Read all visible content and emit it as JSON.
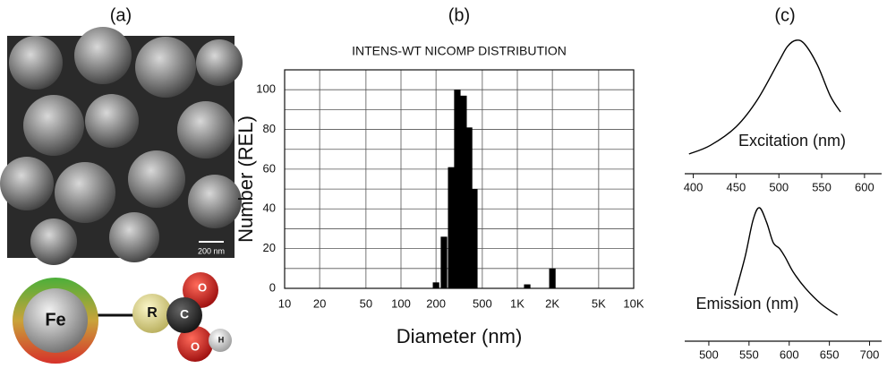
{
  "panel_labels": [
    "(a)",
    "(b)",
    "(c)"
  ],
  "scale_bar": "200 nm",
  "molecule": {
    "core": "Fe",
    "atoms": [
      "R",
      "C",
      "O",
      "O",
      "H"
    ]
  },
  "chart_data": [
    {
      "type": "bar",
      "title": "INTENS-WT NICOMP DISTRIBUTION",
      "x_label": "Diameter (nm)",
      "y_label": "Number (REL)",
      "x": [
        200,
        234,
        270,
        305,
        345,
        385,
        427,
        1216,
        2000
      ],
      "values": [
        3,
        26,
        61,
        100,
        97,
        81,
        50,
        2,
        10
      ],
      "color": "#000000",
      "x_scale": "log",
      "xlim": [
        10,
        10000
      ],
      "xticks": [
        10,
        20,
        50,
        100,
        200,
        500,
        {
          "value": 1000,
          "label": "1K"
        },
        {
          "value": 2000,
          "label": "2K"
        },
        {
          "value": 5000,
          "label": "5K"
        },
        {
          "value": 10000,
          "label": "10K"
        }
      ],
      "ylim": [
        0,
        110
      ],
      "yticks": [
        0,
        20,
        40,
        60,
        80,
        100
      ],
      "y_minor_ticks": [
        10,
        30,
        50,
        70,
        90,
        110
      ],
      "grid": true
    },
    {
      "type": "line",
      "x_label": "Excitation (nm)",
      "x": [
        395,
        420,
        450,
        475,
        500,
        510,
        520,
        530,
        545,
        560,
        572
      ],
      "values": [
        0.08,
        0.15,
        0.3,
        0.52,
        0.83,
        0.95,
        1.0,
        0.97,
        0.8,
        0.55,
        0.42
      ],
      "color": "#000000",
      "xlim": [
        390,
        620
      ],
      "xticks": [
        400,
        450,
        500,
        550,
        600
      ],
      "ylim": [
        0,
        1
      ]
    },
    {
      "type": "line",
      "x_label": "Emission (nm)",
      "x": [
        532,
        545,
        555,
        563,
        572,
        580,
        588,
        595,
        605,
        620,
        640,
        660
      ],
      "values": [
        0.29,
        0.6,
        0.9,
        1.0,
        0.88,
        0.72,
        0.67,
        0.6,
        0.48,
        0.35,
        0.22,
        0.13
      ],
      "color": "#000000",
      "xlim": [
        470,
        715
      ],
      "xticks": [
        500,
        550,
        600,
        650,
        700
      ],
      "ylim": [
        0,
        1
      ]
    }
  ]
}
